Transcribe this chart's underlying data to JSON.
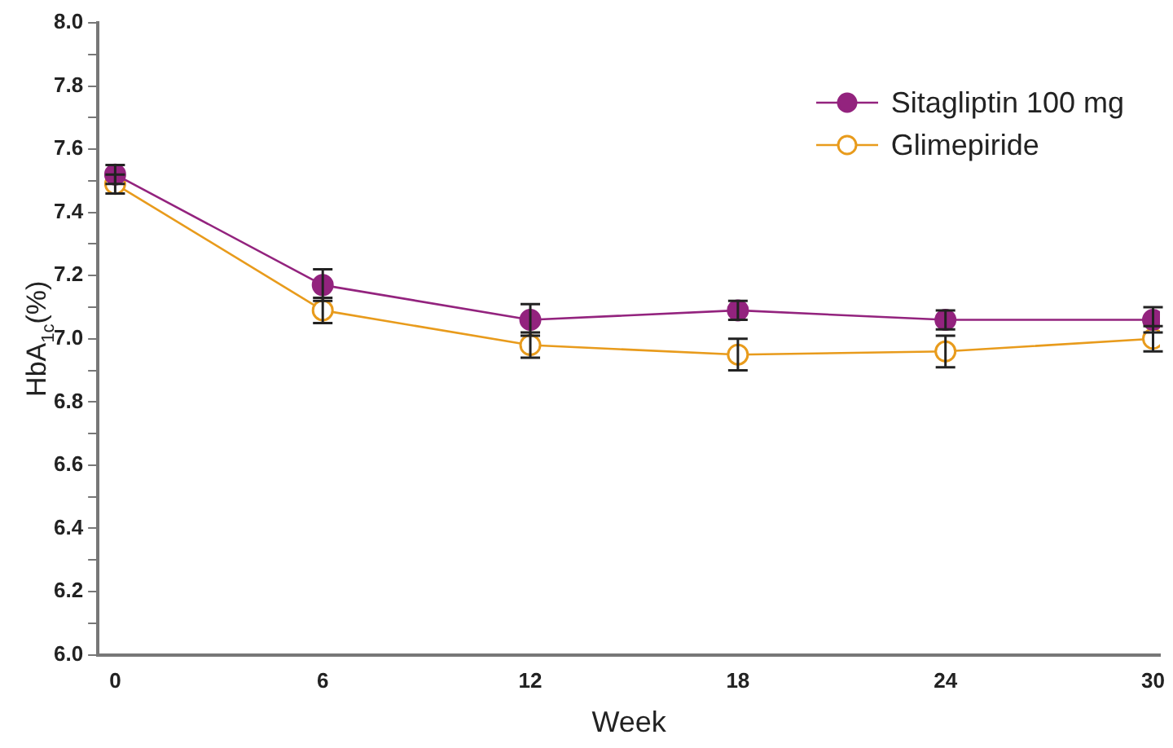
{
  "chart_data": {
    "type": "line",
    "xlabel": "Week",
    "ylabel": "HbA$_{1c}$(%)",
    "x": [
      0,
      6,
      12,
      18,
      24,
      30
    ],
    "series": [
      {
        "name": "Sitagliptin 100 mg",
        "color": "#93237e",
        "marker": "circle",
        "values": [
          7.52,
          7.17,
          7.06,
          7.09,
          7.06,
          7.06
        ],
        "errors": [
          0.03,
          0.05,
          0.05,
          0.03,
          0.03,
          0.04
        ]
      },
      {
        "name": "Glimepiride",
        "color": "#e89b1c",
        "marker": "circle",
        "values": [
          7.49,
          7.09,
          6.98,
          6.95,
          6.96,
          7.0
        ],
        "errors": [
          0.03,
          0.04,
          0.04,
          0.05,
          0.05,
          0.04
        ]
      }
    ],
    "xlim": [
      -0.5,
      30.2
    ],
    "xticks": [
      0,
      6,
      12,
      18,
      24,
      30
    ],
    "ylim": [
      6,
      8
    ],
    "yticks": [
      {
        "value": 6,
        "label": "6.0"
      },
      {
        "value": 6.1,
        "label": null
      },
      {
        "value": 6.2,
        "label": "6.2"
      },
      {
        "value": 6.3,
        "label": null
      },
      {
        "value": 6.4,
        "label": "6.4"
      },
      {
        "value": 6.5,
        "label": null
      },
      {
        "value": 6.6,
        "label": "6.6"
      },
      {
        "value": 6.7,
        "label": null
      },
      {
        "value": 6.8,
        "label": "6.8"
      },
      {
        "value": 6.9,
        "label": null
      },
      {
        "value": 7,
        "label": "7.0"
      },
      {
        "value": 7.1,
        "label": null
      },
      {
        "value": 7.2,
        "label": "7.2"
      },
      {
        "value": 7.3,
        "label": null
      },
      {
        "value": 7.4,
        "label": "7.4"
      },
      {
        "value": 7.5,
        "label": null
      },
      {
        "value": 7.6,
        "label": "7.6"
      },
      {
        "value": 7.7,
        "label": null
      },
      {
        "value": 7.8,
        "label": "7.8"
      },
      {
        "value": 7.9,
        "label": null
      },
      {
        "value": 8,
        "label": "8.0"
      }
    ],
    "grid": false,
    "legend": "top right",
    "line_style": "solid"
  }
}
